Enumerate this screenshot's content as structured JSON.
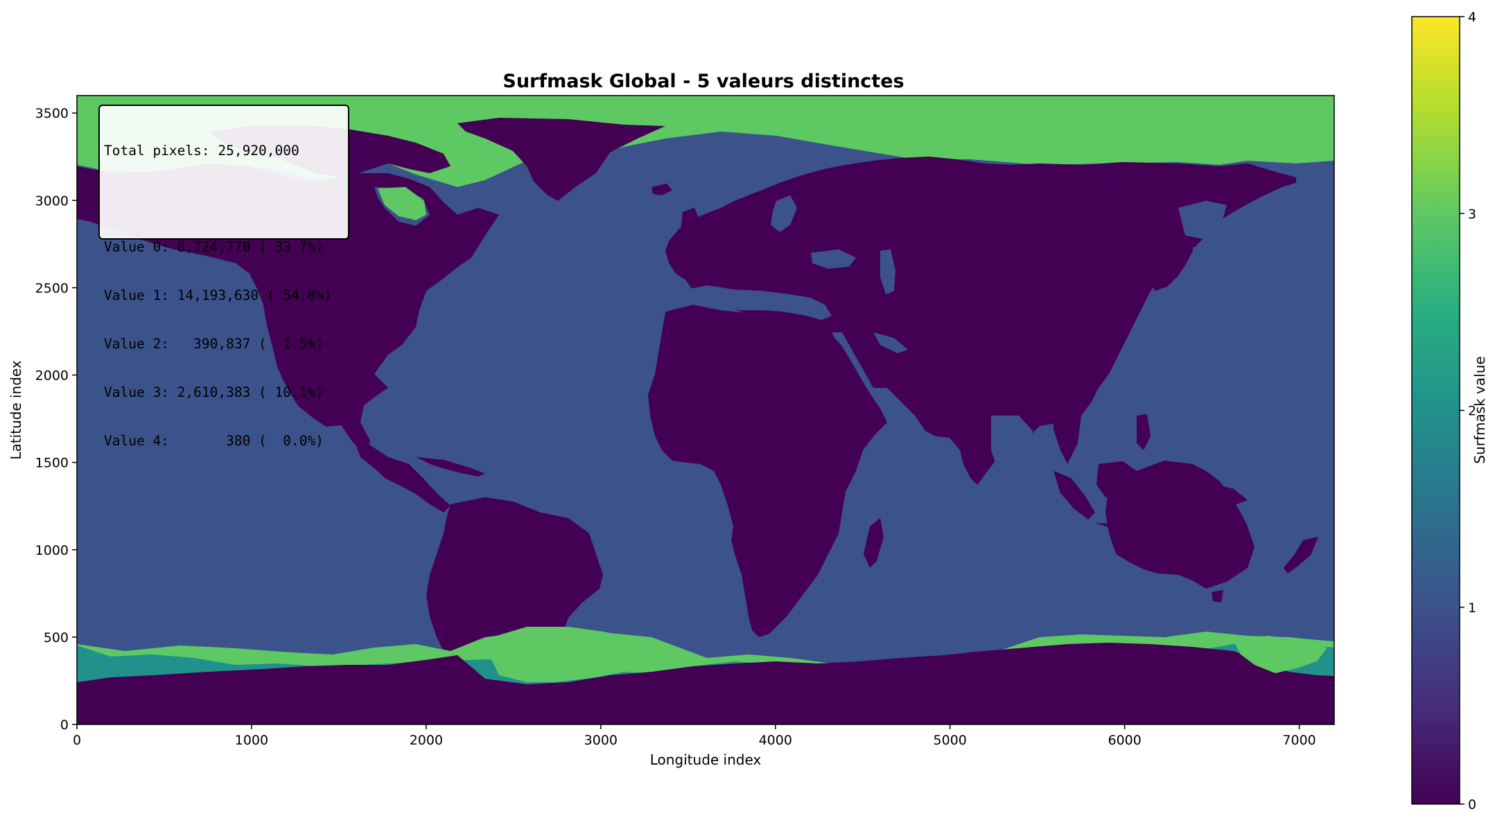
{
  "chart_data": {
    "type": "heatmap",
    "title": "Surfmask Global - 5 valeurs distinctes",
    "xlabel": "Longitude index",
    "ylabel": "Latitude index",
    "xlim": [
      0,
      7200
    ],
    "ylim": [
      0,
      3600
    ],
    "xticks": [
      0,
      1000,
      2000,
      3000,
      4000,
      5000,
      6000,
      7000
    ],
    "yticks": [
      0,
      500,
      1000,
      1500,
      2000,
      2500,
      3000,
      3500
    ],
    "colorbar": {
      "label": "Surfmask value",
      "range": [
        0,
        4
      ],
      "ticks": [
        0,
        1,
        2,
        3,
        4
      ],
      "colormap": "viridis"
    },
    "categories": [
      {
        "value": 0,
        "count": "8,724,770",
        "percent": "33.7%",
        "color": "#440154"
      },
      {
        "value": 1,
        "count": "14,193,630",
        "percent": "54.8%",
        "color": "#3b528b"
      },
      {
        "value": 2,
        "count": "390,837",
        "percent": "1.5%",
        "color": "#21918c"
      },
      {
        "value": 3,
        "count": "2,610,383",
        "percent": "10.1%",
        "color": "#5ec962"
      },
      {
        "value": 4,
        "count": "380",
        "percent": "0.0%",
        "color": "#fde725"
      }
    ],
    "total_pixels": "25,920,000"
  },
  "stats": {
    "total_line": "Total pixels: 25,920,000",
    "lines": [
      "Value 0: 8,724,770 ( 33.7%)",
      "Value 1: 14,193,630 ( 54.8%)",
      "Value 2:   390,837 (  1.5%)",
      "Value 3: 2,610,383 ( 10.1%)",
      "Value 4:       380 (  0.0%)"
    ]
  }
}
